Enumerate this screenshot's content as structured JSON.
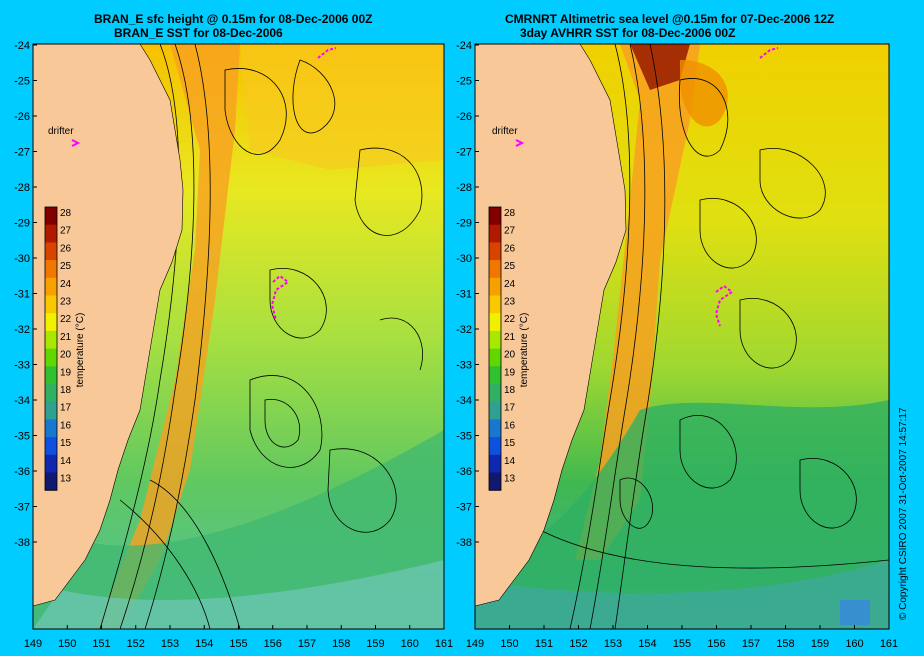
{
  "left_panel": {
    "title_line1": "BRAN_E sfc height @ 0.15m for 08-Dec-2006 00Z",
    "title_line2": "BRAN_E SST for 08-Dec-2006",
    "drifter_label": "drifter"
  },
  "right_panel": {
    "title_line1": "CMRNRT Altimetric sea level  @0.15m  for 07-Dec-2006 12Z",
    "title_line2": "3day AVHRR SST for 08-Dec-2006 00Z",
    "drifter_label": "drifter"
  },
  "lat_ticks": [
    "-24",
    "-25",
    "-26",
    "-27",
    "-28",
    "-29",
    "-30",
    "-31",
    "-32",
    "-33",
    "-34",
    "-35",
    "-36",
    "-37",
    "-38"
  ],
  "lon_ticks": [
    "149",
    "150",
    "151",
    "152",
    "153",
    "154",
    "155",
    "156",
    "157",
    "158",
    "159",
    "160",
    "161"
  ],
  "colorbar": {
    "title": "temperature (°C)",
    "ticks": [
      "28",
      "27",
      "26",
      "25",
      "24",
      "23",
      "22",
      "21",
      "20",
      "19",
      "18",
      "17",
      "16",
      "15",
      "14",
      "13"
    ],
    "colors": [
      "#800000",
      "#b01a00",
      "#d84400",
      "#f07800",
      "#f8a000",
      "#f8c800",
      "#f0f000",
      "#a8e800",
      "#60d800",
      "#30c030",
      "#30b060",
      "#30a090",
      "#1878d0",
      "#1050e0",
      "#1028b0",
      "#101870"
    ]
  },
  "copyright": "© Copyright CSIRO 2007   31-Oct-2007 14:57:17",
  "colors": {
    "background": "#00ccff",
    "land": "#f8c898",
    "drifter_track": "#ff00ff"
  }
}
